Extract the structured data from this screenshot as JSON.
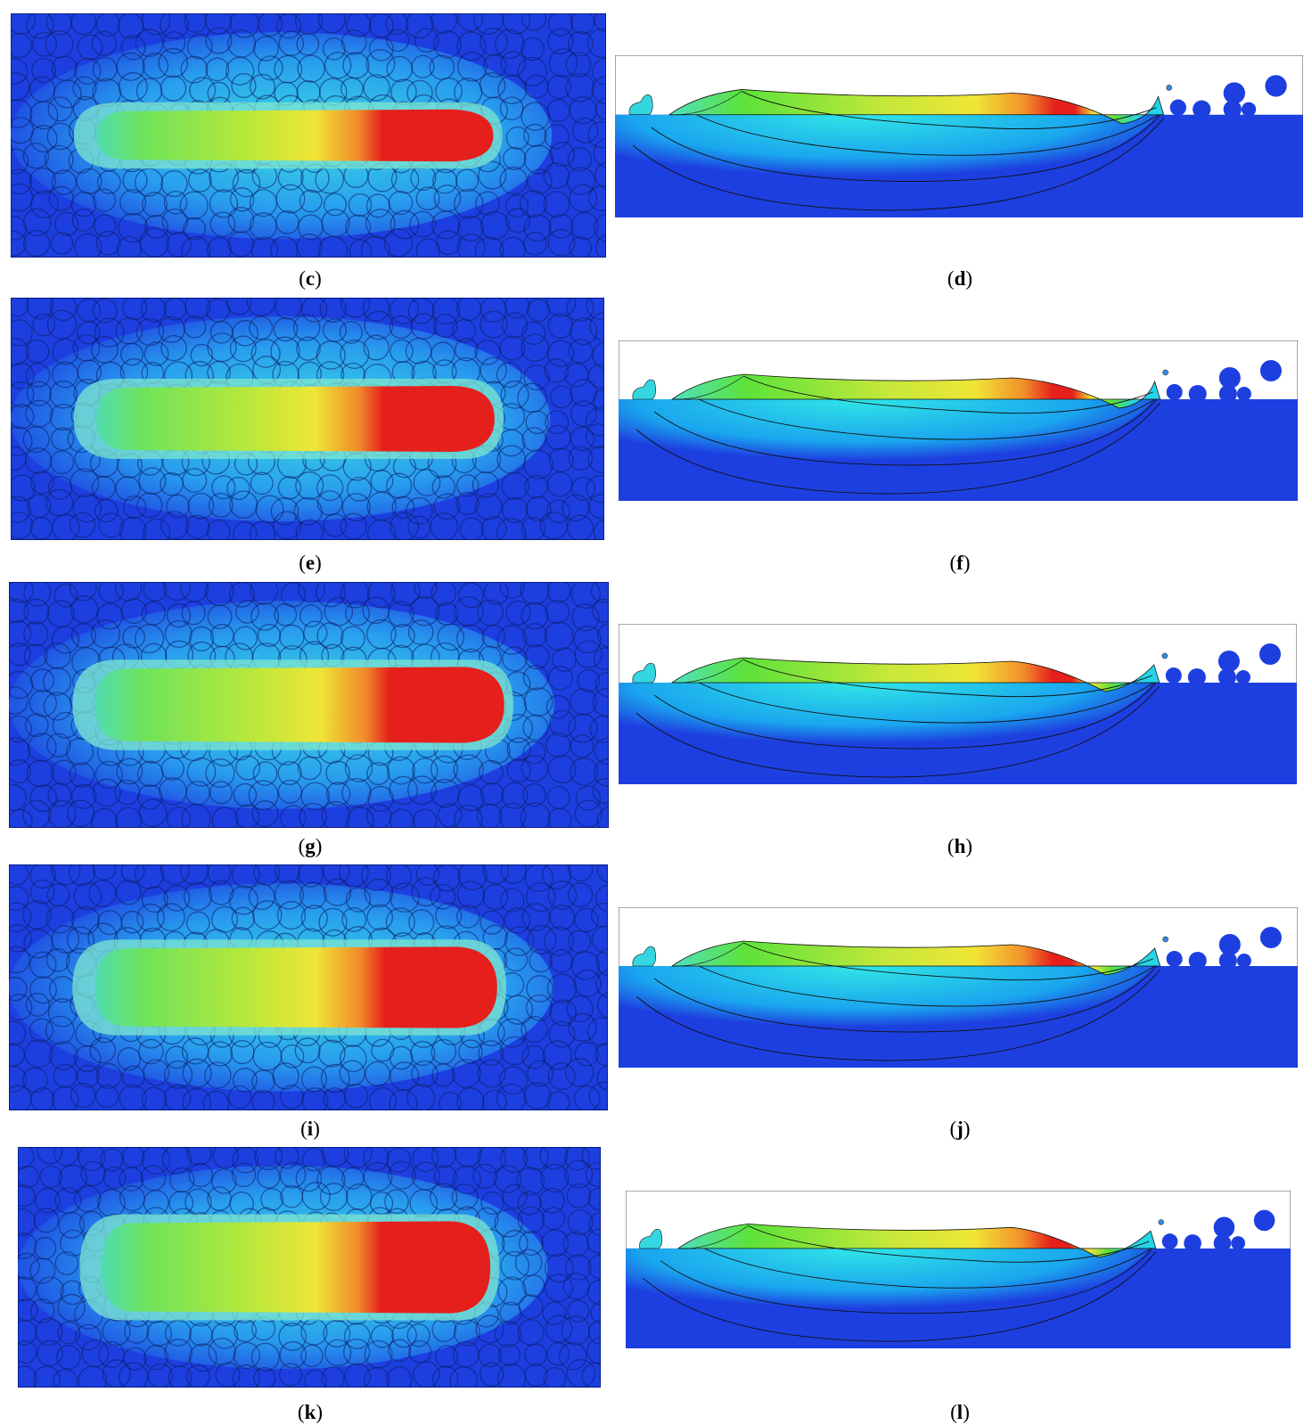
{
  "panels": [
    {
      "left": "c",
      "right": "d"
    },
    {
      "left": "e",
      "right": "f"
    },
    {
      "left": "g",
      "right": "h"
    },
    {
      "left": "i",
      "right": "j"
    },
    {
      "left": "k",
      "right": "l"
    }
  ],
  "colors": {
    "substrate_blue": "#1d3fe0",
    "cool": "#25d4e8",
    "green": "#5ce23a",
    "yellow": "#f0e536",
    "hot": "#e5201c",
    "contour_line": "#101010"
  }
}
